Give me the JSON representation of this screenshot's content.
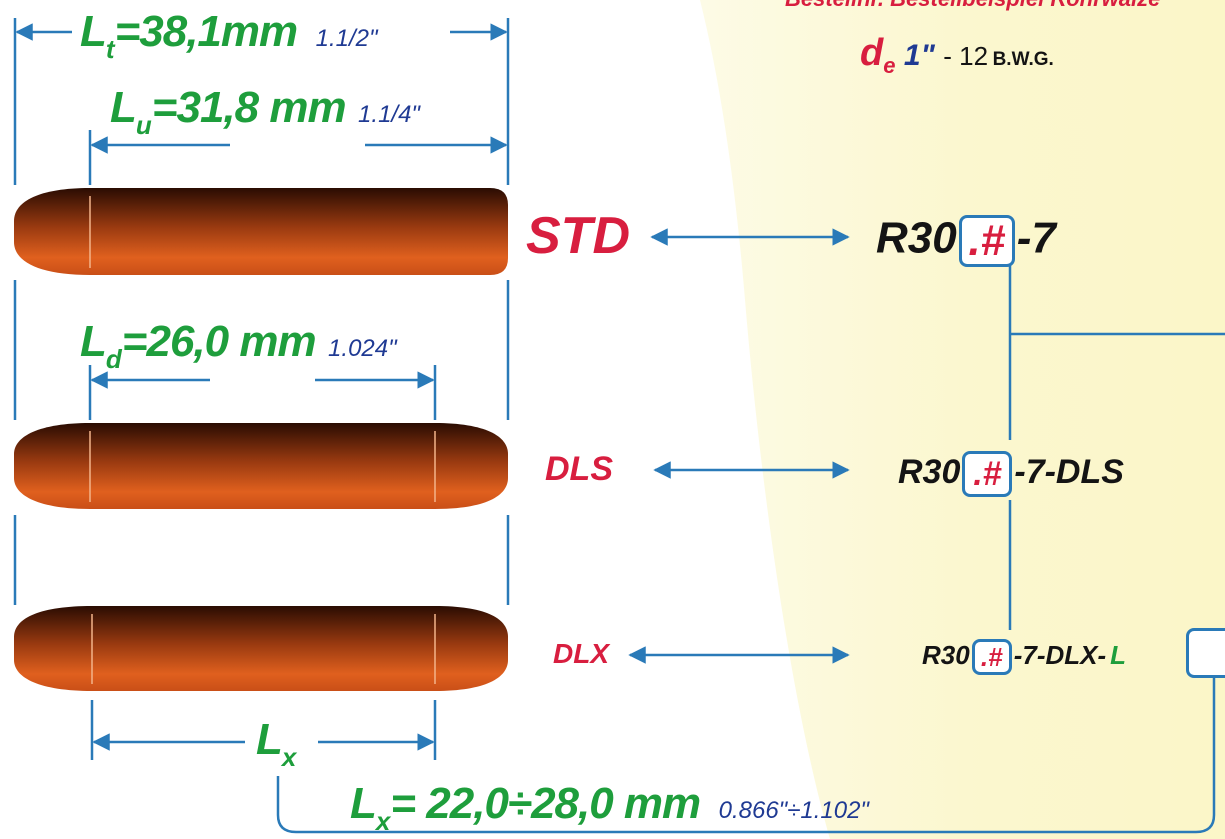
{
  "header": {
    "caption_partial": "Bestellnr. Bestellbeispiel Rohrwalze",
    "diameter_symbol": "d",
    "diameter_subscript": "e",
    "diameter_value": "1\"",
    "gauge": "- 12",
    "gauge_unit": "B.W.G."
  },
  "dimensions": {
    "lt": {
      "symbol": "L",
      "sub": "t",
      "metric": "=38,1mm",
      "imperial": "1.1/2\""
    },
    "lu": {
      "symbol": "L",
      "sub": "u",
      "metric": "=31,8 mm",
      "imperial": "1.1/4\""
    },
    "ld": {
      "symbol": "L",
      "sub": "d",
      "metric": "=26,0 mm",
      "imperial": "1.024\""
    },
    "lx": {
      "symbol": "L",
      "sub": "x"
    },
    "lx_range": {
      "symbol": "L",
      "sub": "x",
      "metric": "= 22,0÷28,0 mm",
      "imperial": "0.866\"÷1.102\""
    }
  },
  "rollers": [
    {
      "type": "STD",
      "code_prefix": "R30",
      "code_box": ".#",
      "code_suffix": "-7"
    },
    {
      "type": "DLS",
      "code_prefix": "R30",
      "code_box": ".#",
      "code_suffix": "-7-DLS"
    },
    {
      "type": "DLX",
      "code_prefix": "R30",
      "code_box": ".#",
      "code_suffix": "-7-DLX-",
      "code_tail": "L"
    }
  ],
  "colors": {
    "dimension_green": "#1e9e3c",
    "imperial_navy": "#1f3a93",
    "type_red": "#d81e3f",
    "line_blue": "#2a7ab8",
    "roller_copper": "#c8501a",
    "panel_yellow": "#fbf8d2"
  }
}
